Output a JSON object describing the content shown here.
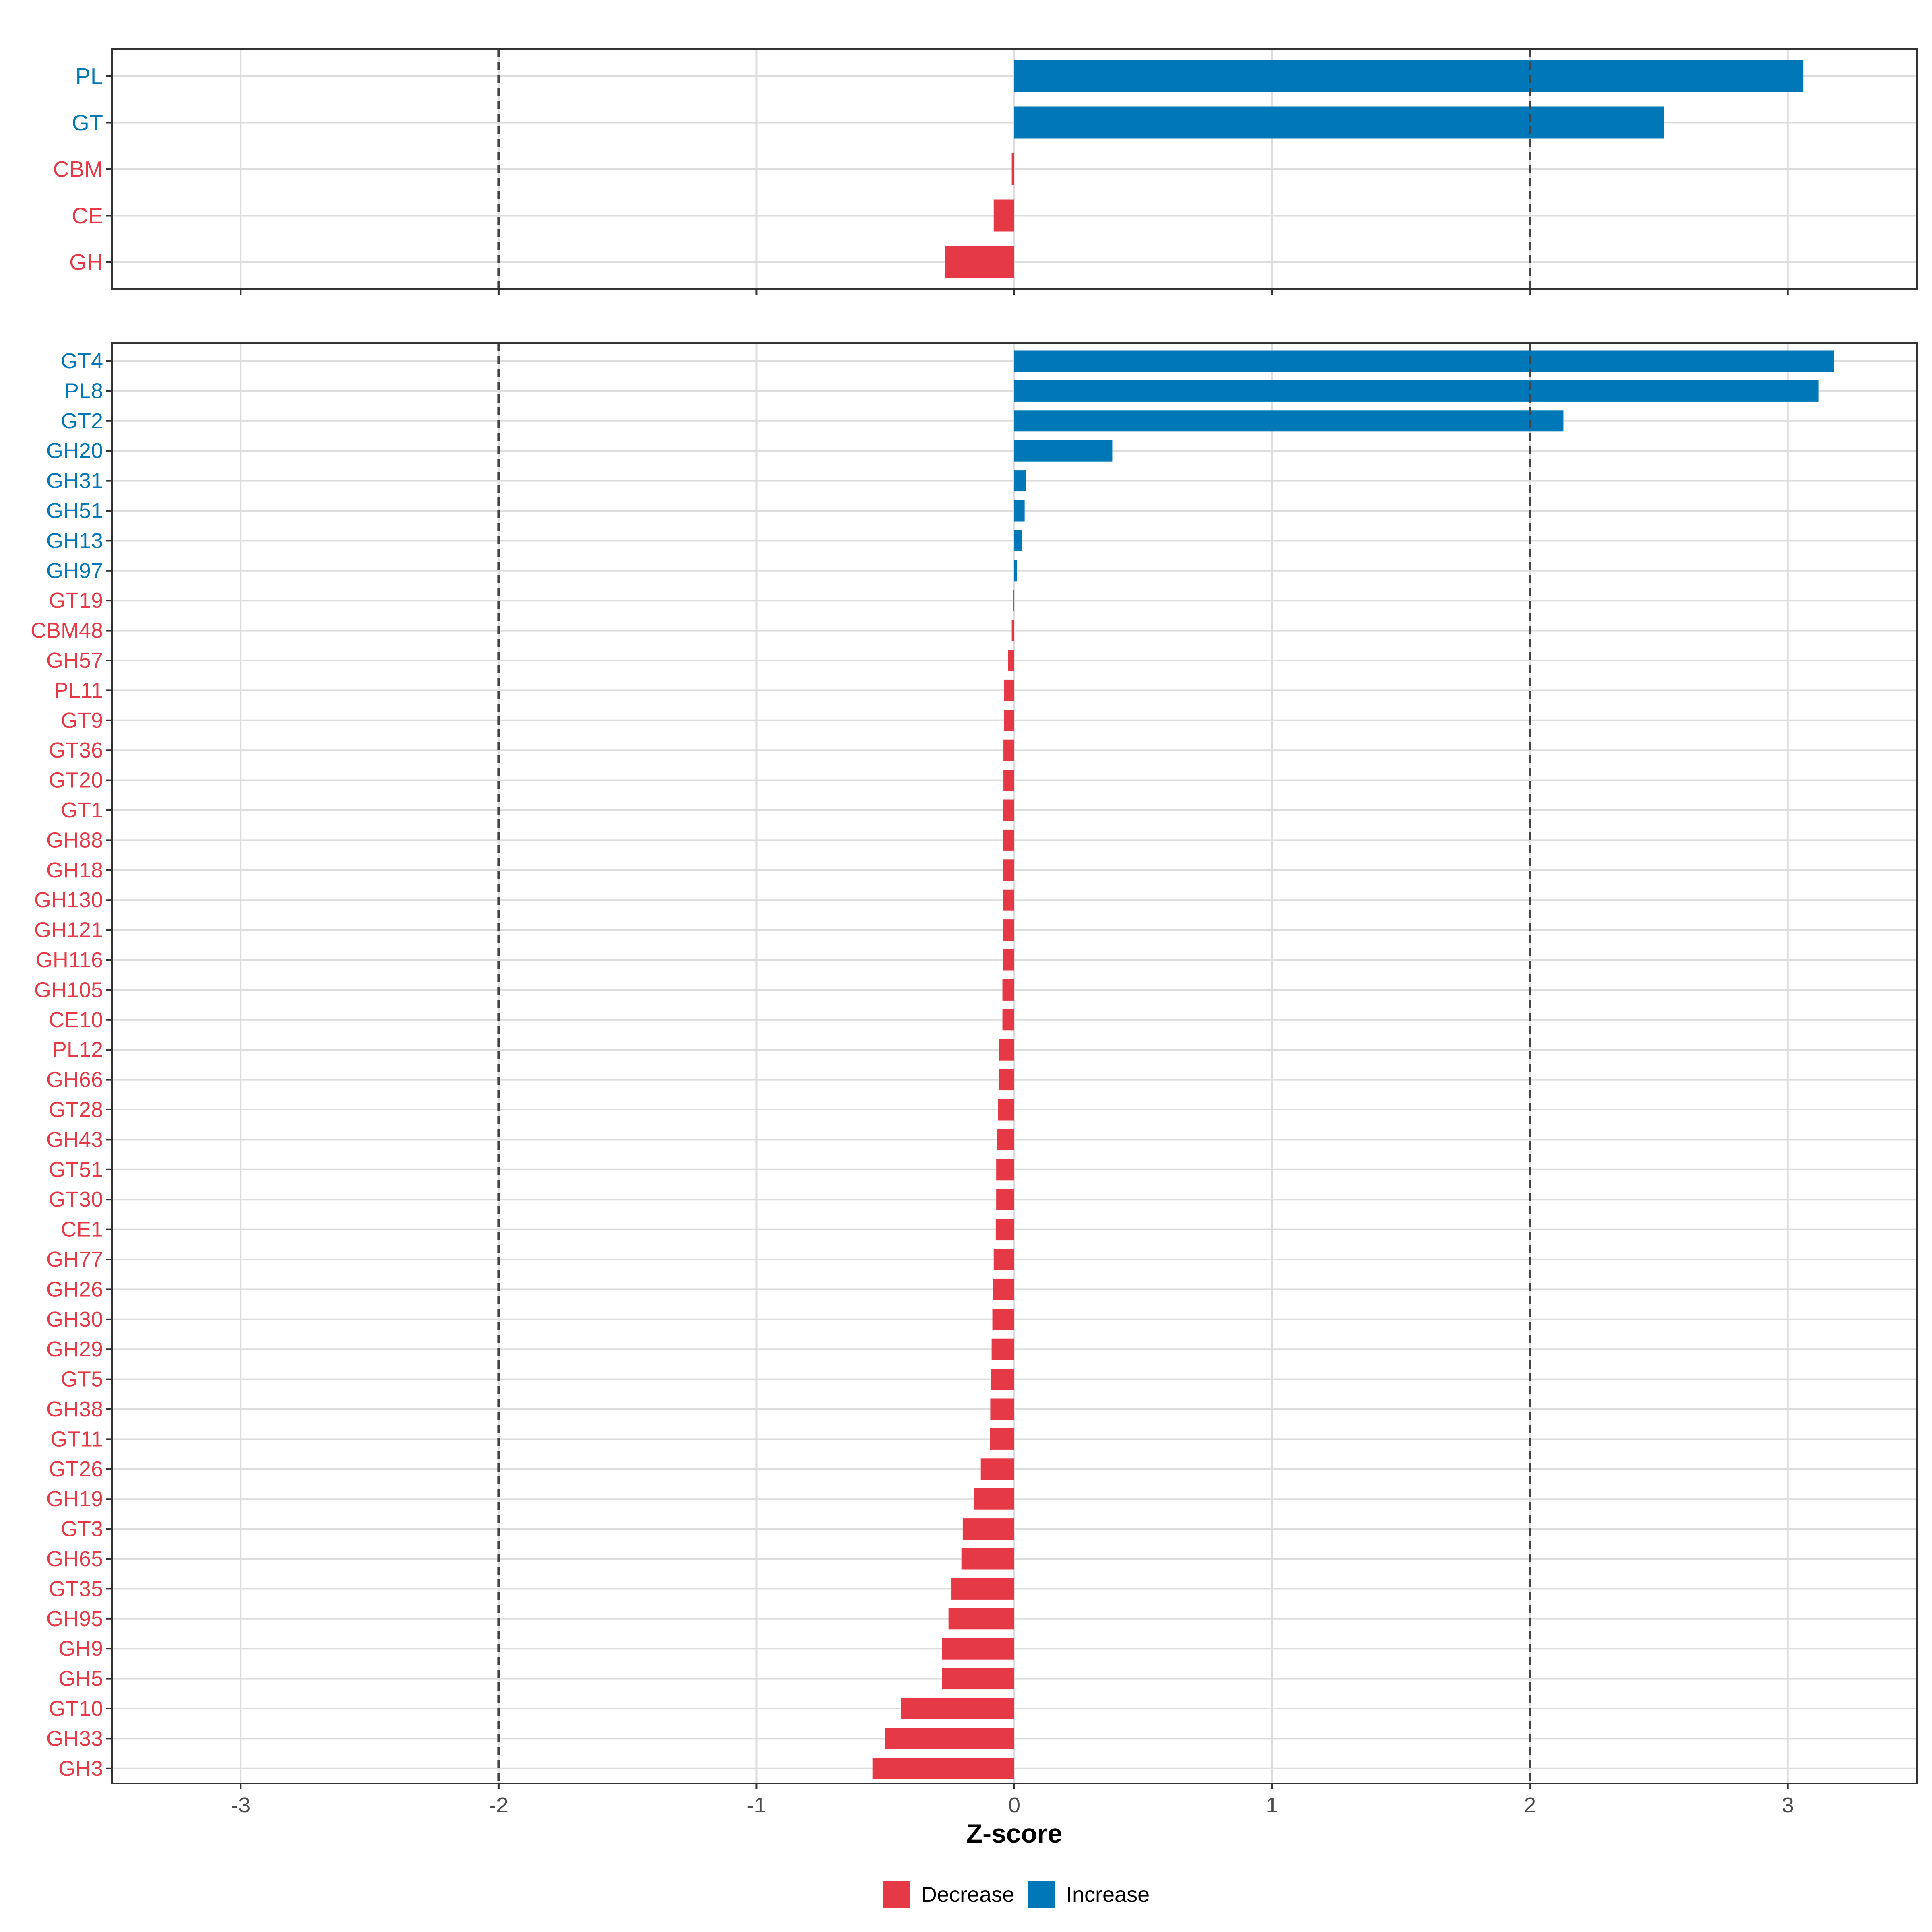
{
  "colors": {
    "decrease": "#E63946",
    "increase": "#0077B6",
    "grid": "#DDDDDD",
    "panel_border": "#333333",
    "threshold_line": "#444444",
    "tick_text": "#4D4D4D",
    "title_text": "#000000"
  },
  "chart_data": [
    {
      "id": "class_level",
      "type": "bar",
      "orientation": "horizontal",
      "categories": [
        "PL",
        "GT",
        "CBM",
        "CE",
        "GH"
      ],
      "values": [
        3.06,
        2.52,
        -0.01,
        -0.08,
        -0.27
      ],
      "direction": [
        "Increase",
        "Increase",
        "Decrease",
        "Decrease",
        "Decrease"
      ],
      "xlim": [
        -3.5,
        3.5
      ],
      "x_ticks": [
        -3,
        -2,
        -1,
        0,
        1,
        2,
        3
      ],
      "show_tick_labels": false,
      "threshold_lines": [
        -2,
        2
      ],
      "grid": true
    },
    {
      "id": "family_level",
      "type": "bar",
      "orientation": "horizontal",
      "categories": [
        "GT4",
        "PL8",
        "GT2",
        "GH20",
        "GH31",
        "GH51",
        "GH13",
        "GH97",
        "GT19",
        "CBM48",
        "GH57",
        "PL11",
        "GT9",
        "GT36",
        "GT20",
        "GT1",
        "GH88",
        "GH18",
        "GH130",
        "GH121",
        "GH116",
        "GH105",
        "CE10",
        "PL12",
        "GH66",
        "GT28",
        "GH43",
        "GT51",
        "GT30",
        "CE1",
        "GH77",
        "GH26",
        "GH30",
        "GH29",
        "GT5",
        "GH38",
        "GT11",
        "GT26",
        "GH19",
        "GT3",
        "GH65",
        "GT35",
        "GH95",
        "GH9",
        "GH5",
        "GT10",
        "GH33",
        "GH3"
      ],
      "values": [
        3.18,
        3.12,
        2.13,
        0.38,
        0.045,
        0.04,
        0.03,
        0.01,
        -0.005,
        -0.01,
        -0.025,
        -0.04,
        -0.04,
        -0.042,
        -0.042,
        -0.043,
        -0.044,
        -0.044,
        -0.045,
        -0.045,
        -0.045,
        -0.046,
        -0.046,
        -0.058,
        -0.06,
        -0.063,
        -0.068,
        -0.07,
        -0.07,
        -0.072,
        -0.08,
        -0.082,
        -0.085,
        -0.088,
        -0.092,
        -0.093,
        -0.095,
        -0.13,
        -0.155,
        -0.2,
        -0.205,
        -0.245,
        -0.255,
        -0.28,
        -0.28,
        -0.44,
        -0.5,
        -0.55
      ],
      "direction": [
        "Increase",
        "Increase",
        "Increase",
        "Increase",
        "Increase",
        "Increase",
        "Increase",
        "Increase",
        "Decrease",
        "Decrease",
        "Decrease",
        "Decrease",
        "Decrease",
        "Decrease",
        "Decrease",
        "Decrease",
        "Decrease",
        "Decrease",
        "Decrease",
        "Decrease",
        "Decrease",
        "Decrease",
        "Decrease",
        "Decrease",
        "Decrease",
        "Decrease",
        "Decrease",
        "Decrease",
        "Decrease",
        "Decrease",
        "Decrease",
        "Decrease",
        "Decrease",
        "Decrease",
        "Decrease",
        "Decrease",
        "Decrease",
        "Decrease",
        "Decrease",
        "Decrease",
        "Decrease",
        "Decrease",
        "Decrease",
        "Decrease",
        "Decrease",
        "Decrease",
        "Decrease",
        "Decrease"
      ],
      "xlim": [
        -3.5,
        3.5
      ],
      "x_ticks": [
        -3,
        -2,
        -1,
        0,
        1,
        2,
        3
      ],
      "tick_labels": [
        "-3",
        "-2",
        "-1",
        "0",
        "1",
        "2",
        "3"
      ],
      "threshold_lines": [
        -2,
        2
      ],
      "grid": true,
      "xlabel": "Z-score"
    }
  ],
  "legend": {
    "position": "bottom",
    "items": [
      {
        "label": "Decrease",
        "color_key": "decrease"
      },
      {
        "label": "Increase",
        "color_key": "increase"
      }
    ]
  }
}
